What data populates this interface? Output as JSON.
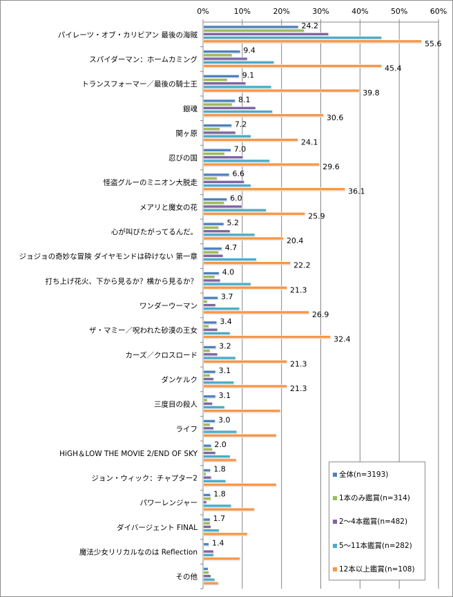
{
  "chart_data": {
    "type": "bar",
    "orientation": "horizontal",
    "title": "",
    "xlabel": "",
    "ylabel": "",
    "xlim": [
      0,
      60
    ],
    "x_ticks": [
      "0%",
      "10%",
      "20%",
      "30%",
      "40%",
      "50%",
      "60%"
    ],
    "grid": true,
    "legend_position": "bottom-right",
    "categories": [
      "パイレーツ・オブ・カリビアン 最後の海賊",
      "スパイダーマン：ホームカミング",
      "トランスフォーマー／最後の騎士王",
      "銀魂",
      "関ヶ原",
      "忍びの国",
      "怪盗グルーのミニオン大脱走",
      "メアリと魔女の花",
      "心が叫びたがってるんだ。",
      "ジョジョの奇妙な冒険 ダイヤモンドは砕けない 第一章",
      "打ち上げ花火、下から見るか？横から見るか？",
      "ワンダーウーマン",
      "ザ・マミー／呪われた砂漠の王女",
      "カーズ／クロスロード",
      "ダンケルク",
      "三度目の殺人",
      "ライフ",
      "HiGH＆LOW THE MOVIE 2/END OF SKY",
      "ジョン・ウィック：チャプター2",
      "パワーレンジャー",
      "ダイバージェント FINAL",
      "魔法少女リリカルなのは Reflection",
      "その他"
    ],
    "series": [
      {
        "name": "全体(n=3193)",
        "color": "#4f81bd",
        "labeled": true,
        "values": [
          24.2,
          9.4,
          9.1,
          8.1,
          7.2,
          7.0,
          6.6,
          6.0,
          5.2,
          4.7,
          4.0,
          3.7,
          3.4,
          3.2,
          3.1,
          3.1,
          3.0,
          2.0,
          1.8,
          1.8,
          1.7,
          1.4,
          1.2
        ]
      },
      {
        "name": "1本のみ鑑賞(n=314)",
        "color": "#9bbb59",
        "labeled": false,
        "values": [
          25.7,
          7.3,
          6.1,
          7.3,
          4.2,
          5.4,
          3.5,
          5.3,
          3.9,
          3.9,
          2.9,
          1.0,
          1.4,
          1.7,
          1.7,
          1.0,
          1.7,
          2.3,
          0.7,
          1.9,
          1.7,
          0.0,
          1.4
        ]
      },
      {
        "name": "2〜4本鑑賞(n=482)",
        "color": "#8064a2",
        "labeled": false,
        "values": [
          31.9,
          11.2,
          10.8,
          13.3,
          8.2,
          10.1,
          10.4,
          9.8,
          6.8,
          5.0,
          4.3,
          3.1,
          3.6,
          3.6,
          2.6,
          2.3,
          2.6,
          3.1,
          2.0,
          0.8,
          1.9,
          2.6,
          1.9
        ]
      },
      {
        "name": "5〜11本鑑賞(n=282)",
        "color": "#4bacc6",
        "labeled": false,
        "values": [
          45.4,
          18.0,
          17.3,
          17.6,
          12.1,
          16.9,
          12.1,
          16.0,
          13.1,
          13.5,
          12.1,
          9.2,
          6.8,
          8.2,
          7.8,
          5.4,
          8.5,
          6.8,
          5.7,
          7.1,
          4.0,
          2.6,
          2.9
        ]
      },
      {
        "name": "12本以上鑑賞(n=108)",
        "color": "#f79646",
        "labeled": true,
        "values": [
          55.6,
          45.4,
          39.8,
          30.6,
          24.1,
          29.6,
          36.1,
          25.9,
          20.4,
          22.2,
          21.3,
          26.9,
          32.4,
          21.3,
          21.3,
          19.6,
          18.6,
          8.4,
          18.6,
          13.0,
          11.2,
          9.3,
          3.8
        ],
        "labels_shown_for_first": 15
      }
    ],
    "data_labels": {
      "全体(n=3193)": [
        "24.2",
        "9.4",
        "9.1",
        "8.1",
        "7.2",
        "7.0",
        "6.6",
        "6.0",
        "5.2",
        "4.7",
        "4.0",
        "3.7",
        "3.4",
        "3.2",
        "3.1",
        "3.1",
        "3.0",
        "2.0",
        "1.8",
        "1.8",
        "1.7",
        "1.4",
        ""
      ],
      "12本以上鑑賞(n=108)": [
        "55.6",
        "45.4",
        "39.8",
        "30.6",
        "24.1",
        "29.6",
        "36.1",
        "25.9",
        "20.4",
        "22.2",
        "21.3",
        "26.9",
        "32.4",
        "21.3",
        "21.3",
        "",
        "",
        "",
        "",
        "",
        "",
        "",
        ""
      ]
    }
  },
  "legend": {
    "items": [
      {
        "label": "全体(n=3193)",
        "color": "#4f81bd"
      },
      {
        "label": "1本のみ鑑賞(n=314)",
        "color": "#9bbb59"
      },
      {
        "label": "2〜4本鑑賞(n=482)",
        "color": "#8064a2"
      },
      {
        "label": "5〜11本鑑賞(n=282)",
        "color": "#4bacc6"
      },
      {
        "label": "12本以上鑑賞(n=108)",
        "color": "#f79646"
      }
    ]
  }
}
